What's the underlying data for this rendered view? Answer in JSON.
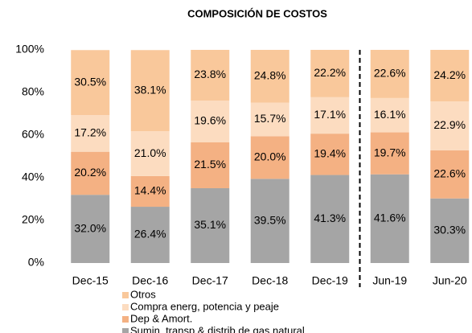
{
  "chart_data": {
    "type": "stacked_bar",
    "title": "COMPOSICIÓN DE COSTOS",
    "categories": [
      "Dec-15",
      "Dec-16",
      "Dec-17",
      "Dec-18",
      "Dec-19",
      "Jun-19",
      "Jun-20"
    ],
    "series": [
      {
        "name": "Sumin, transp & distrib de gas natural",
        "color": "#a5a5a5",
        "values": [
          32.0,
          26.4,
          35.1,
          39.5,
          41.3,
          41.6,
          30.3
        ],
        "value_labels": [
          "32.0%",
          "26.4%",
          "35.1%",
          "39.5%",
          "41.3%",
          "41.6%",
          "30.3%"
        ]
      },
      {
        "name": "Dep & Amort.",
        "color": "#f4b183",
        "values": [
          20.2,
          14.4,
          21.5,
          20.0,
          19.4,
          19.7,
          22.6
        ],
        "value_labels": [
          "20.2%",
          "14.4%",
          "21.5%",
          "20.0%",
          "19.4%",
          "19.7%",
          "22.6%"
        ]
      },
      {
        "name": "Compra energ, potencia y peaje",
        "color": "#fcdcc0",
        "values": [
          17.2,
          21.0,
          19.6,
          15.7,
          17.1,
          16.1,
          22.9
        ],
        "value_labels": [
          "17.2%",
          "21.0%",
          "19.6%",
          "15.7%",
          "17.1%",
          "16.1%",
          "22.9%"
        ]
      },
      {
        "name": "Otros",
        "color": "#f9c89b",
        "values": [
          30.5,
          38.1,
          23.8,
          24.8,
          22.2,
          22.6,
          24.2
        ],
        "value_labels": [
          "30.5%",
          "38.1%",
          "23.8%",
          "24.8%",
          "22.2%",
          "22.6%",
          "24.2%"
        ]
      }
    ],
    "ylim": [
      0,
      100
    ],
    "yticks": [
      {
        "value": 0,
        "label": "0%"
      },
      {
        "value": 20,
        "label": "20%"
      },
      {
        "value": 40,
        "label": "40%"
      },
      {
        "value": 60,
        "label": "60%"
      },
      {
        "value": 80,
        "label": "80%"
      },
      {
        "value": 100,
        "label": "100%"
      }
    ],
    "grid": false,
    "legend": "bottom"
  }
}
